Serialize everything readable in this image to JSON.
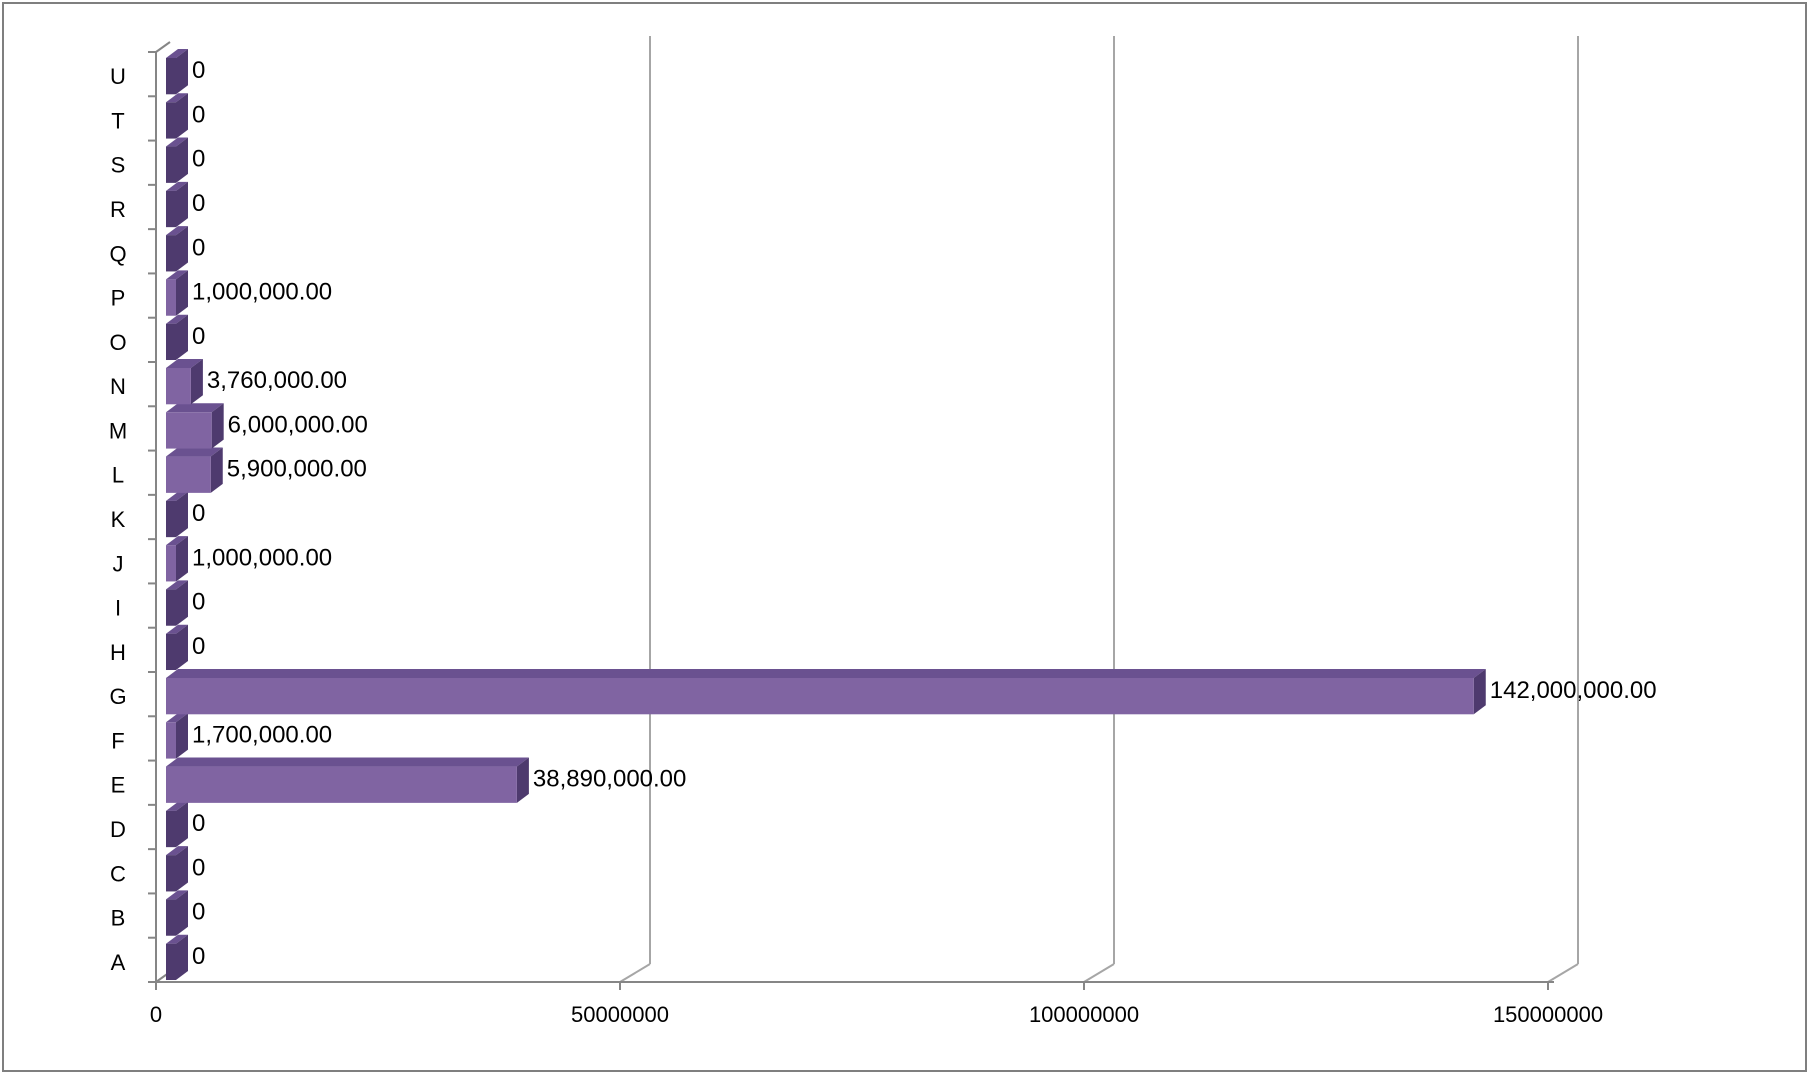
{
  "chart_data": {
    "type": "bar",
    "orientation": "horizontal",
    "style": "3d",
    "categories": [
      "A",
      "B",
      "C",
      "D",
      "E",
      "F",
      "G",
      "H",
      "I",
      "J",
      "K",
      "L",
      "M",
      "N",
      "O",
      "P",
      "Q",
      "R",
      "S",
      "T",
      "U"
    ],
    "series": [
      {
        "values": [
          0,
          0,
          0,
          0,
          38890000,
          1700000,
          142000000,
          0,
          0,
          1000000,
          0,
          5900000,
          6000000,
          3760000,
          0,
          1000000,
          0,
          0,
          0,
          0,
          0
        ],
        "data_labels": [
          "0",
          "0",
          "0",
          "0",
          "38,890,000.00",
          "1,700,000.00",
          "142,000,000.00",
          "0",
          "0",
          "1,000,000.00",
          "0",
          "5,900,000.00",
          "6,000,000.00",
          "3,760,000.00",
          "0",
          "1,000,000.00",
          "0",
          "0",
          "0",
          "0",
          "0"
        ]
      }
    ],
    "xlim": [
      0,
      150000000
    ],
    "x_ticks": [
      0,
      50000000,
      100000000,
      150000000
    ],
    "x_tick_labels": [
      "0",
      "50000000",
      "100000000",
      "150000000"
    ],
    "grid": true,
    "legend": "none",
    "colors": {
      "bar_front": "#8064a2",
      "bar_top": "#6a5190",
      "bar_side": "#4e3a6e",
      "grid": "#a6a6a6"
    }
  }
}
